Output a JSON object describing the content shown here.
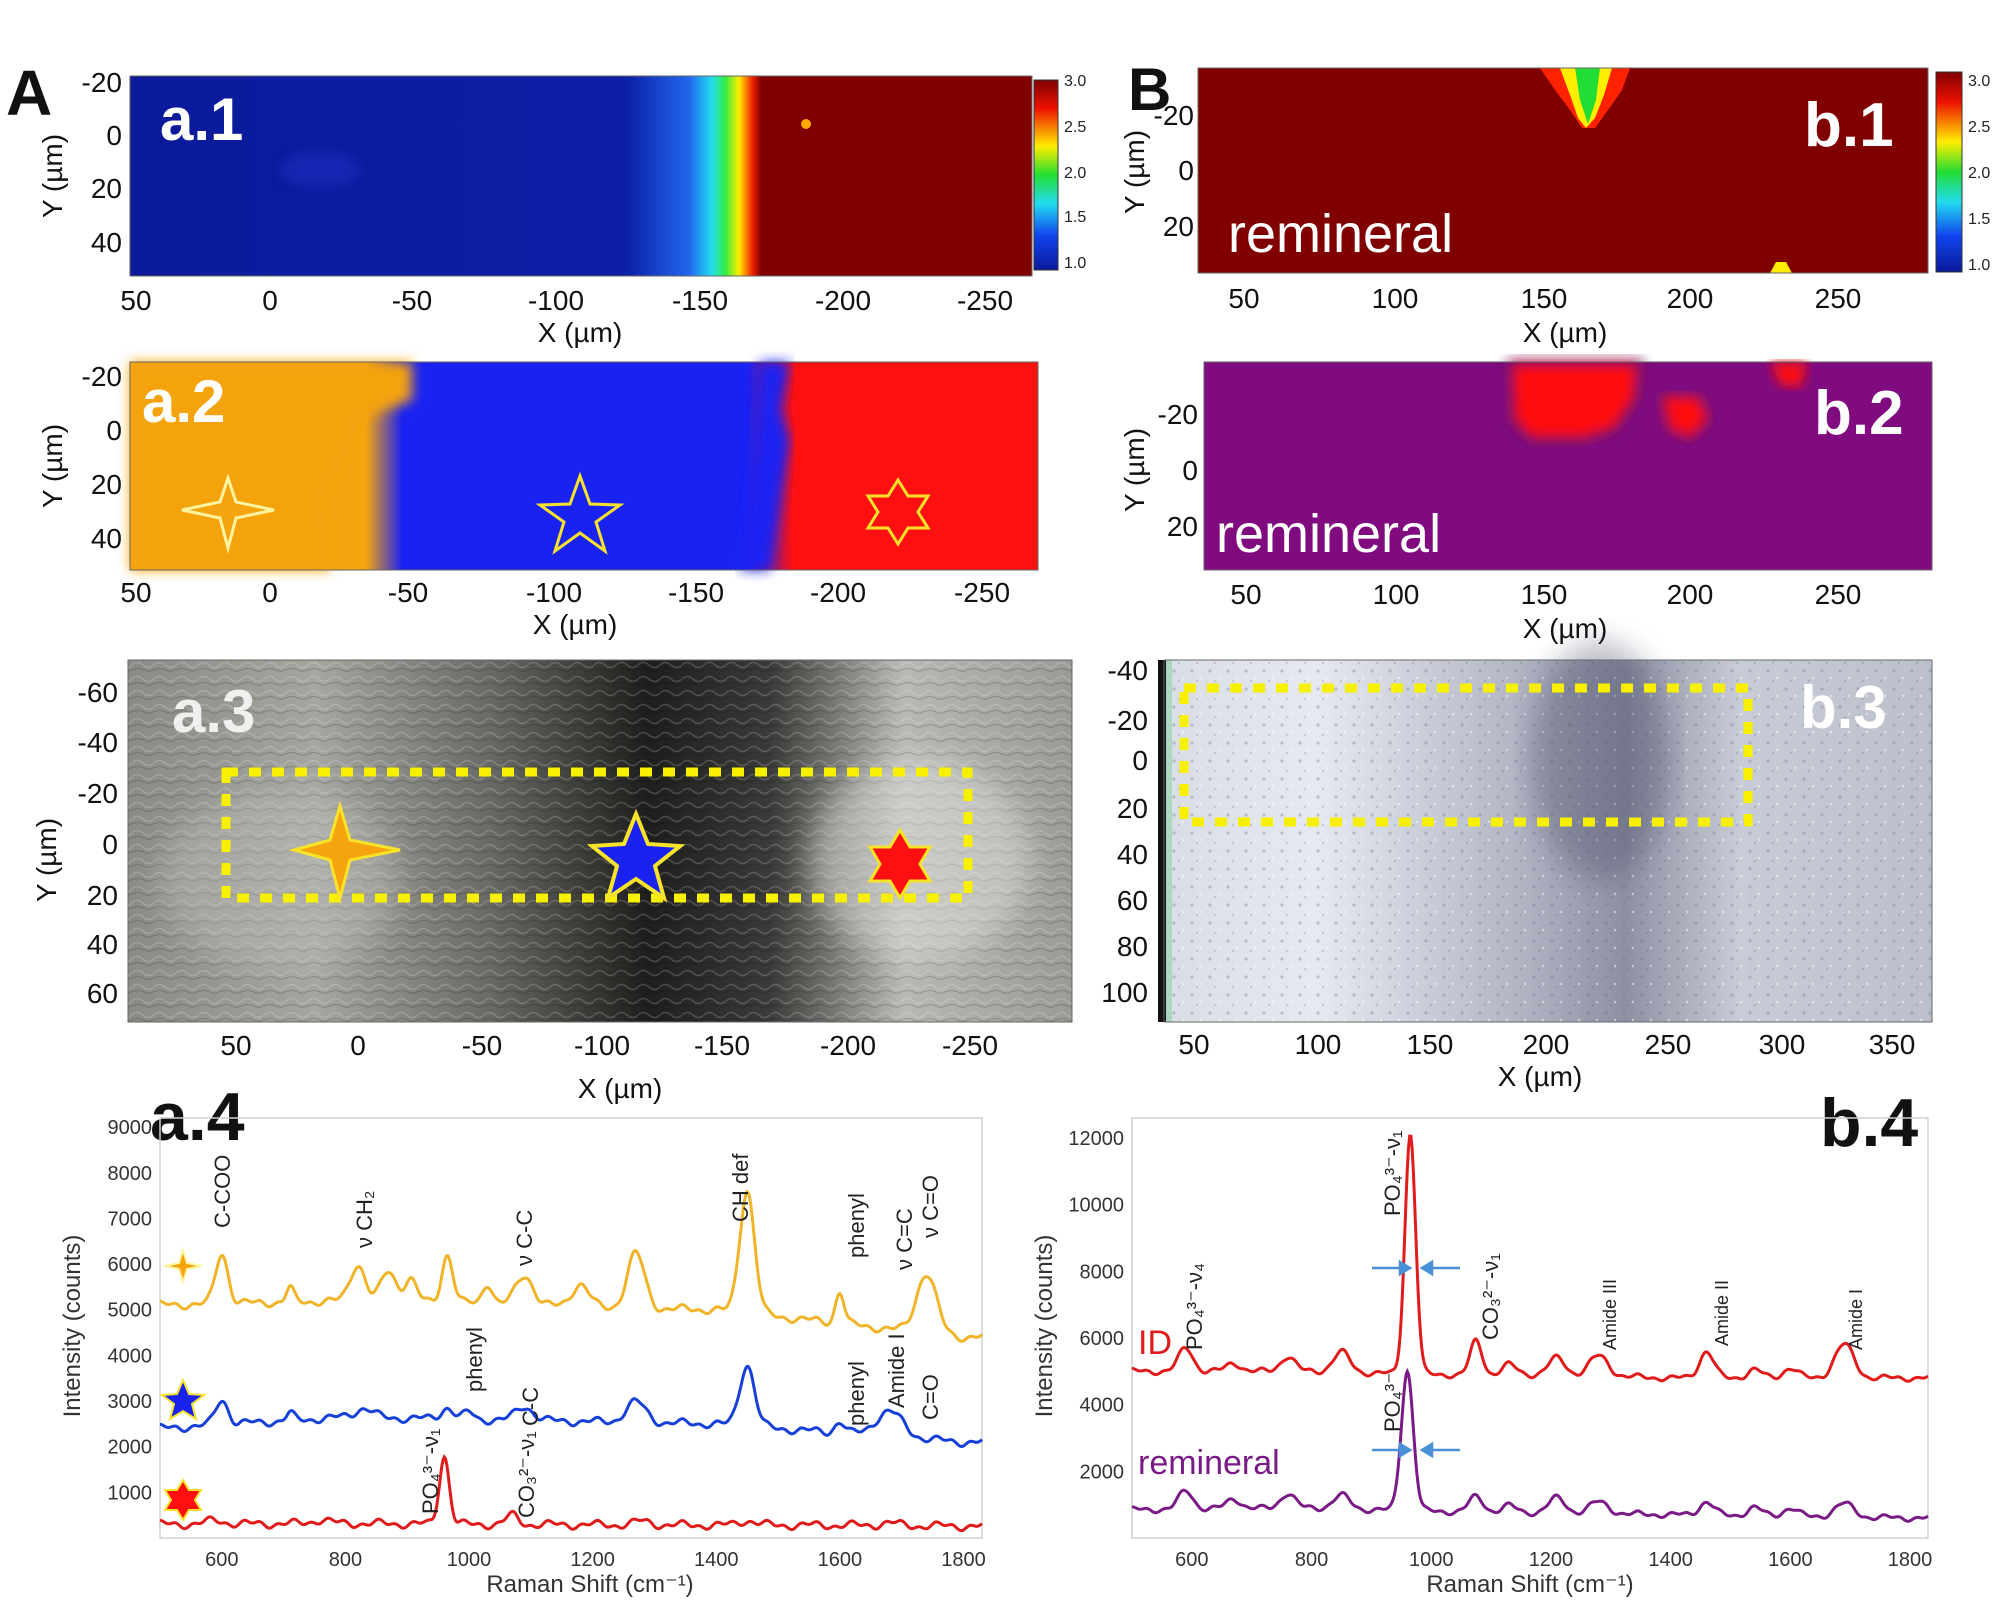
{
  "figure": {
    "panel_A": "A",
    "panel_B": "B"
  },
  "a1": {
    "label": "a.1",
    "xlabel": "X (µm)",
    "ylabel": "Y (µm)",
    "xticks": [
      "50",
      "0",
      "-50",
      "-100",
      "-150",
      "-200",
      "-250"
    ],
    "yticks": [
      "-20",
      "0",
      "20",
      "40"
    ],
    "colorbar_ticks": [
      "3.0",
      "2.5",
      "2.0",
      "1.5",
      "1.0"
    ]
  },
  "a2": {
    "label": "a.2",
    "xlabel": "X (µm)",
    "ylabel": "Y (µm)",
    "xticks": [
      "50",
      "0",
      "-50",
      "-100",
      "-150",
      "-200",
      "-250"
    ],
    "yticks": [
      "-20",
      "0",
      "20",
      "40"
    ]
  },
  "a3": {
    "label": "a.3",
    "xlabel": "X (µm)",
    "ylabel": "Y (µm)",
    "xticks": [
      "50",
      "0",
      "-50",
      "-100",
      "-150",
      "-200",
      "-250"
    ],
    "yticks": [
      "-60",
      "-40",
      "-20",
      "0",
      "20",
      "40",
      "60"
    ]
  },
  "b1": {
    "label": "b.1",
    "overlay": "remineral",
    "xlabel": "X (µm)",
    "ylabel": "Y (µm)",
    "xticks": [
      "50",
      "100",
      "150",
      "200",
      "250"
    ],
    "yticks": [
      "-20",
      "0",
      "20"
    ],
    "colorbar_ticks": [
      "3.0",
      "2.5",
      "2.0",
      "1.5",
      "1.0"
    ]
  },
  "b2": {
    "label": "b.2",
    "overlay": "remineral",
    "xlabel": "X (µm)",
    "ylabel": "Y (µm)",
    "xticks": [
      "50",
      "100",
      "150",
      "200",
      "250"
    ],
    "yticks": [
      "-20",
      "0",
      "20"
    ]
  },
  "b3": {
    "label": "b.3",
    "xlabel": "X (µm)",
    "ylabel": "Y (µm)",
    "xticks": [
      "50",
      "100",
      "150",
      "200",
      "250",
      "300",
      "350"
    ],
    "yticks": [
      "-40",
      "-20",
      "0",
      "20",
      "40",
      "60",
      "80",
      "100"
    ]
  },
  "chart_data": [
    {
      "type": "line",
      "panel": "a.4",
      "xlabel": "Raman Shift (cm⁻¹)",
      "ylabel": "Intensity (counts)",
      "xlim": [
        500,
        1830
      ],
      "ylim": [
        0,
        9200
      ],
      "xticks": [
        "600",
        "800",
        "1000",
        "1200",
        "1400",
        "1600",
        "1800"
      ],
      "yticks": [
        "1000",
        "2000",
        "3000",
        "4000",
        "5000",
        "6000",
        "7000",
        "8000",
        "9000"
      ],
      "series": [
        {
          "color": "#f0b429",
          "marker": "star4",
          "baseline": [
            [
              500,
              5100
            ],
            [
              800,
              5200
            ],
            [
              1000,
              5150
            ],
            [
              1200,
              5050
            ],
            [
              1400,
              5000
            ],
            [
              1600,
              4700
            ],
            [
              1800,
              4400
            ]
          ],
          "peaks": [
            [
              600,
              1100,
              10
            ],
            [
              710,
              300,
              6
            ],
            [
              820,
              800,
              12
            ],
            [
              870,
              650,
              12
            ],
            [
              905,
              500,
              10
            ],
            [
              965,
              1050,
              9
            ],
            [
              1030,
              450,
              8
            ],
            [
              1090,
              650,
              14
            ],
            [
              1180,
              500,
              14
            ],
            [
              1270,
              1200,
              14
            ],
            [
              1450,
              2700,
              12
            ],
            [
              1600,
              700,
              7
            ],
            [
              1740,
              1300,
              16
            ]
          ]
        },
        {
          "color": "#1740d8",
          "marker": "star5",
          "baseline": [
            [
              500,
              2400
            ],
            [
              800,
              2650
            ],
            [
              1000,
              2600
            ],
            [
              1200,
              2550
            ],
            [
              1400,
              2500
            ],
            [
              1600,
              2300
            ],
            [
              1800,
              2100
            ]
          ],
          "peaks": [
            [
              600,
              550,
              10
            ],
            [
              710,
              150,
              6
            ],
            [
              830,
              200,
              14
            ],
            [
              965,
              250,
              10
            ],
            [
              1000,
              150,
              8
            ],
            [
              1090,
              300,
              14
            ],
            [
              1270,
              450,
              16
            ],
            [
              1450,
              1350,
              12
            ],
            [
              1600,
              250,
              8
            ],
            [
              1680,
              550,
              22
            ]
          ]
        },
        {
          "color": "#e01b1b",
          "marker": "star6",
          "baseline": [
            [
              500,
              300
            ],
            [
              800,
              320
            ],
            [
              1000,
              300
            ],
            [
              1200,
              290
            ],
            [
              1400,
              280
            ],
            [
              1600,
              280
            ],
            [
              1800,
              260
            ]
          ],
          "peaks": [
            [
              590,
              80,
              14
            ],
            [
              760,
              80,
              14
            ],
            [
              960,
              1500,
              8
            ],
            [
              1070,
              200,
              10
            ],
            [
              1280,
              80,
              14
            ],
            [
              1450,
              100,
              14
            ],
            [
              1680,
              60,
              14
            ]
          ]
        }
      ],
      "annotations": [
        "C-COO",
        "ν CH₂",
        "ν C-C",
        "CH def",
        "phenyl",
        "ν C=C",
        "ν C=O",
        "phenyl",
        "C-C",
        "phenyl",
        "Amide I",
        "C=O",
        "PO₄³⁻-ν₁",
        "CO₃²⁻-ν₁"
      ]
    },
    {
      "type": "line",
      "panel": "b.4",
      "xlabel": "Raman Shift (cm⁻¹)",
      "ylabel": "Intensity (counts)",
      "xlim": [
        500,
        1830
      ],
      "ylim": [
        0,
        12600
      ],
      "xticks": [
        "600",
        "800",
        "1000",
        "1200",
        "1400",
        "1600",
        "1800"
      ],
      "yticks": [
        "2000",
        "4000",
        "6000",
        "8000",
        "10000",
        "12000"
      ],
      "series": [
        {
          "name": "ID",
          "color": "#e01b1b",
          "baseline": [
            [
              500,
              5000
            ],
            [
              800,
              5000
            ],
            [
              1000,
              4900
            ],
            [
              1200,
              4900
            ],
            [
              1400,
              4800
            ],
            [
              1600,
              4800
            ],
            [
              1800,
              4800
            ]
          ],
          "peaks": [
            [
              590,
              700,
              12
            ],
            [
              670,
              250,
              12
            ],
            [
              760,
              450,
              12
            ],
            [
              850,
              600,
              14
            ],
            [
              965,
              7200,
              9
            ],
            [
              1075,
              1000,
              10
            ],
            [
              1130,
              300,
              12
            ],
            [
              1210,
              500,
              14
            ],
            [
              1280,
              600,
              16
            ],
            [
              1460,
              800,
              12
            ],
            [
              1540,
              250,
              12
            ],
            [
              1600,
              300,
              12
            ],
            [
              1690,
              1000,
              16
            ]
          ]
        },
        {
          "name": "remineral",
          "color": "#7a1a86",
          "baseline": [
            [
              500,
              850
            ],
            [
              800,
              900
            ],
            [
              1000,
              800
            ],
            [
              1200,
              750
            ],
            [
              1400,
              700
            ],
            [
              1600,
              650
            ],
            [
              1800,
              600
            ]
          ],
          "peaks": [
            [
              590,
              550,
              12
            ],
            [
              670,
              300,
              12
            ],
            [
              760,
              450,
              12
            ],
            [
              850,
              400,
              14
            ],
            [
              960,
              4200,
              10
            ],
            [
              1075,
              450,
              12
            ],
            [
              1130,
              200,
              12
            ],
            [
              1210,
              450,
              14
            ],
            [
              1280,
              350,
              16
            ],
            [
              1460,
              400,
              12
            ],
            [
              1540,
              250,
              12
            ],
            [
              1600,
              250,
              12
            ],
            [
              1690,
              400,
              16
            ]
          ]
        }
      ],
      "annotations": [
        "PO₄³⁻-ν₄",
        "PO₄³⁻-ν₁",
        "CO₃²⁻-ν₁",
        "Amide III",
        "Amide II",
        "Amide I",
        "PO₄³⁻"
      ]
    }
  ]
}
